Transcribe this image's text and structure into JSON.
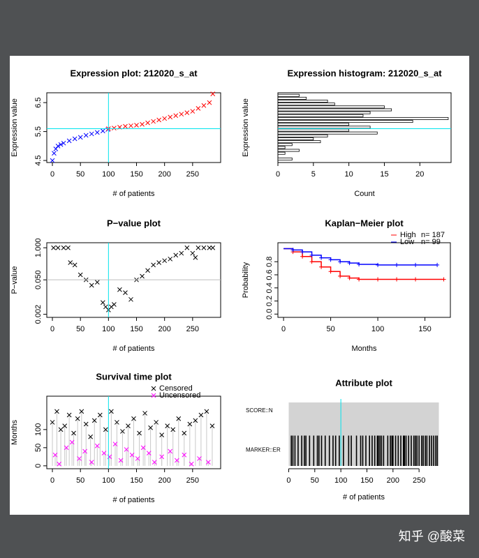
{
  "watermark": "知乎 @酸菜",
  "chart_data": [
    {
      "type": "scatter",
      "title": "Expression plot:  212020_s_at",
      "x_label": "# of patients",
      "y_label": "Expression value",
      "xlim": [
        -10,
        300
      ],
      "ylim": [
        4.43,
        6.84
      ],
      "xticks": [
        0,
        50,
        100,
        150,
        200,
        250
      ],
      "yticks": [
        4.5,
        5.5,
        6.5
      ],
      "marker": "x",
      "reference_lines": [
        {
          "axis": "x",
          "value": 100,
          "color": "#00e5ee"
        },
        {
          "axis": "y",
          "value": 5.6,
          "color": "#00e5ee"
        }
      ],
      "series": [
        {
          "color": "#0000ff",
          "x": [
            0,
            3,
            6,
            10,
            15,
            20,
            30,
            40,
            50,
            60,
            70,
            80,
            90,
            99
          ],
          "values": [
            4.5,
            4.75,
            4.9,
            5.0,
            5.05,
            5.1,
            5.18,
            5.25,
            5.3,
            5.37,
            5.42,
            5.47,
            5.52,
            5.57
          ]
        },
        {
          "color": "#ff0000",
          "x": [
            100,
            110,
            120,
            130,
            140,
            150,
            160,
            170,
            180,
            190,
            200,
            210,
            220,
            230,
            240,
            250,
            260,
            270,
            280,
            286
          ],
          "values": [
            5.6,
            5.62,
            5.65,
            5.68,
            5.7,
            5.72,
            5.75,
            5.8,
            5.85,
            5.9,
            5.95,
            6.0,
            6.05,
            6.1,
            6.15,
            6.2,
            6.3,
            6.4,
            6.5,
            6.8
          ]
        }
      ]
    },
    {
      "type": "histogram",
      "orientation": "horizontal",
      "title": "Expression histogram:  212020_s_at",
      "x_label": "Count",
      "y_label": "Expression value",
      "xlim": [
        0,
        24.4
      ],
      "ylim": [
        4.43,
        6.84
      ],
      "xticks": [
        0,
        5,
        10,
        15,
        20
      ],
      "bins": [
        4.5,
        4.6,
        4.7,
        4.8,
        4.9,
        5.0,
        5.1,
        5.2,
        5.3,
        5.4,
        5.5,
        5.6,
        5.7,
        5.8,
        5.9,
        6.0,
        6.1,
        6.2,
        6.3,
        6.4,
        6.5,
        6.6,
        6.7,
        6.8
      ],
      "values": [
        2,
        0,
        1,
        3,
        1,
        2,
        6,
        5,
        7,
        14,
        10,
        13,
        10,
        19,
        24,
        12,
        13,
        16,
        15,
        8,
        7,
        4,
        3
      ],
      "color": "#ffffff",
      "reference_lines": [
        {
          "axis": "y",
          "value": 5.6,
          "color": "#00e5ee"
        }
      ]
    },
    {
      "type": "scatter",
      "title": "P−value plot",
      "x_label": "# of patients",
      "y_label": "P−value",
      "ylog": true,
      "xlim": [
        -10,
        300
      ],
      "ylim": [
        0.0015,
        1.6
      ],
      "xticks": [
        0,
        50,
        100,
        150,
        200,
        250
      ],
      "yticks": [
        {
          "value": 0.002,
          "label": "0.002"
        },
        {
          "value": 0.05,
          "label": "0.050"
        },
        {
          "value": 1,
          "label": "1.000"
        }
      ],
      "marker": "x",
      "reference_lines": [
        {
          "axis": "x",
          "value": 100,
          "color": "#00e5ee"
        },
        {
          "axis": "y",
          "value": 0.05,
          "color": "#bebebe"
        }
      ],
      "series": [
        {
          "color": "#000000",
          "x": [
            2,
            10,
            20,
            28,
            32,
            40,
            50,
            60,
            70,
            80,
            90,
            95,
            100,
            105,
            110,
            120,
            130,
            140,
            150,
            160,
            170,
            180,
            190,
            200,
            210,
            220,
            230,
            240,
            250,
            255,
            260,
            270,
            280,
            286
          ],
          "values": [
            1,
            1,
            1,
            1,
            0.25,
            0.2,
            0.08,
            0.05,
            0.03,
            0.04,
            0.006,
            0.004,
            0.003,
            0.004,
            0.005,
            0.02,
            0.015,
            0.008,
            0.05,
            0.07,
            0.12,
            0.2,
            0.25,
            0.3,
            0.35,
            0.5,
            0.6,
            1,
            0.6,
            0.4,
            1,
            1,
            1,
            1
          ]
        }
      ]
    },
    {
      "type": "line",
      "step": true,
      "title": "Kaplan−Meier plot",
      "x_label": "Months",
      "y_label": "Probability",
      "xlim": [
        -6,
        177
      ],
      "ylim": [
        -0.05,
        1.09
      ],
      "xticks": [
        0,
        50,
        100,
        150
      ],
      "yticks": [
        {
          "value": 0,
          "label": "0.0"
        },
        0.2,
        0.4,
        0.6,
        0.8
      ],
      "series": [
        {
          "name": "High",
          "n_label": "n= 187",
          "color": "#ff0000",
          "x": [
            0,
            10,
            20,
            30,
            40,
            50,
            60,
            70,
            80,
            100,
            120,
            140,
            170
          ],
          "values": [
            1,
            0.95,
            0.88,
            0.8,
            0.72,
            0.65,
            0.58,
            0.55,
            0.53,
            0.53,
            0.53,
            0.53,
            0.53
          ]
        },
        {
          "name": "Low",
          "n_label": "n= 99",
          "color": "#0000ff",
          "x": [
            0,
            10,
            20,
            30,
            40,
            50,
            60,
            70,
            80,
            100,
            120,
            140,
            163
          ],
          "values": [
            1,
            0.98,
            0.95,
            0.9,
            0.86,
            0.83,
            0.8,
            0.78,
            0.76,
            0.75,
            0.75,
            0.75,
            0.75
          ]
        }
      ]
    },
    {
      "type": "scatter",
      "stems": true,
      "title": "Survival time plot",
      "x_label": "# of patients",
      "y_label": "Months",
      "xlim": [
        -10,
        300
      ],
      "ylim": [
        -8,
        192
      ],
      "xticks": [
        0,
        50,
        100,
        150,
        200,
        250
      ],
      "yticks": [
        0,
        50,
        100
      ],
      "marker": "x",
      "reference_lines": [
        {
          "axis": "x",
          "value": 100,
          "color": "#00e5ee"
        }
      ],
      "series": [
        {
          "name": "Censored",
          "color": "#000000",
          "x": [
            0,
            8,
            15,
            22,
            30,
            38,
            45,
            52,
            60,
            68,
            75,
            85,
            95,
            105,
            115,
            125,
            135,
            145,
            155,
            165,
            175,
            185,
            195,
            205,
            215,
            225,
            235,
            245,
            255,
            265,
            275,
            285
          ],
          "values": [
            120,
            150,
            100,
            110,
            140,
            90,
            130,
            150,
            115,
            80,
            125,
            140,
            100,
            150,
            120,
            95,
            110,
            130,
            90,
            145,
            105,
            120,
            85,
            110,
            100,
            130,
            90,
            115,
            125,
            140,
            150,
            110
          ]
        },
        {
          "name": "Uncensored",
          "color": "#ff00ff",
          "x": [
            5,
            12,
            25,
            35,
            48,
            58,
            70,
            80,
            92,
            102,
            112,
            122,
            132,
            142,
            152,
            162,
            172,
            182,
            195,
            210,
            222,
            235,
            248,
            262,
            278
          ],
          "values": [
            30,
            5,
            50,
            65,
            20,
            40,
            10,
            55,
            35,
            25,
            60,
            15,
            45,
            30,
            20,
            50,
            35,
            10,
            25,
            40,
            15,
            30,
            5,
            20,
            10
          ]
        }
      ]
    },
    {
      "type": "barcode",
      "title": "Attribute plot",
      "x_label": "# of patients",
      "xlim": [
        -10,
        298
      ],
      "xticks": [
        0,
        50,
        100,
        150,
        200,
        250
      ],
      "background": "#d3d3d3",
      "color": "#000000",
      "reference_lines": [
        {
          "axis": "x",
          "value": 100,
          "color": "#00e5ee"
        }
      ],
      "rows": [
        {
          "label": "SCORE::N",
          "x": []
        },
        {
          "label": "MARKER::ER",
          "x": [
            5,
            8,
            12,
            18,
            25,
            30,
            33,
            40,
            48,
            55,
            58,
            63,
            70,
            78,
            85,
            90,
            97,
            105,
            115,
            120,
            130,
            138,
            142,
            148,
            155,
            160,
            165,
            170,
            172,
            175,
            178,
            182,
            190,
            195,
            198,
            200,
            205,
            210,
            215,
            220,
            222,
            225,
            230,
            235,
            240,
            243,
            246,
            250,
            255,
            258,
            262,
            265,
            270,
            274,
            278,
            282,
            285
          ]
        }
      ]
    }
  ]
}
